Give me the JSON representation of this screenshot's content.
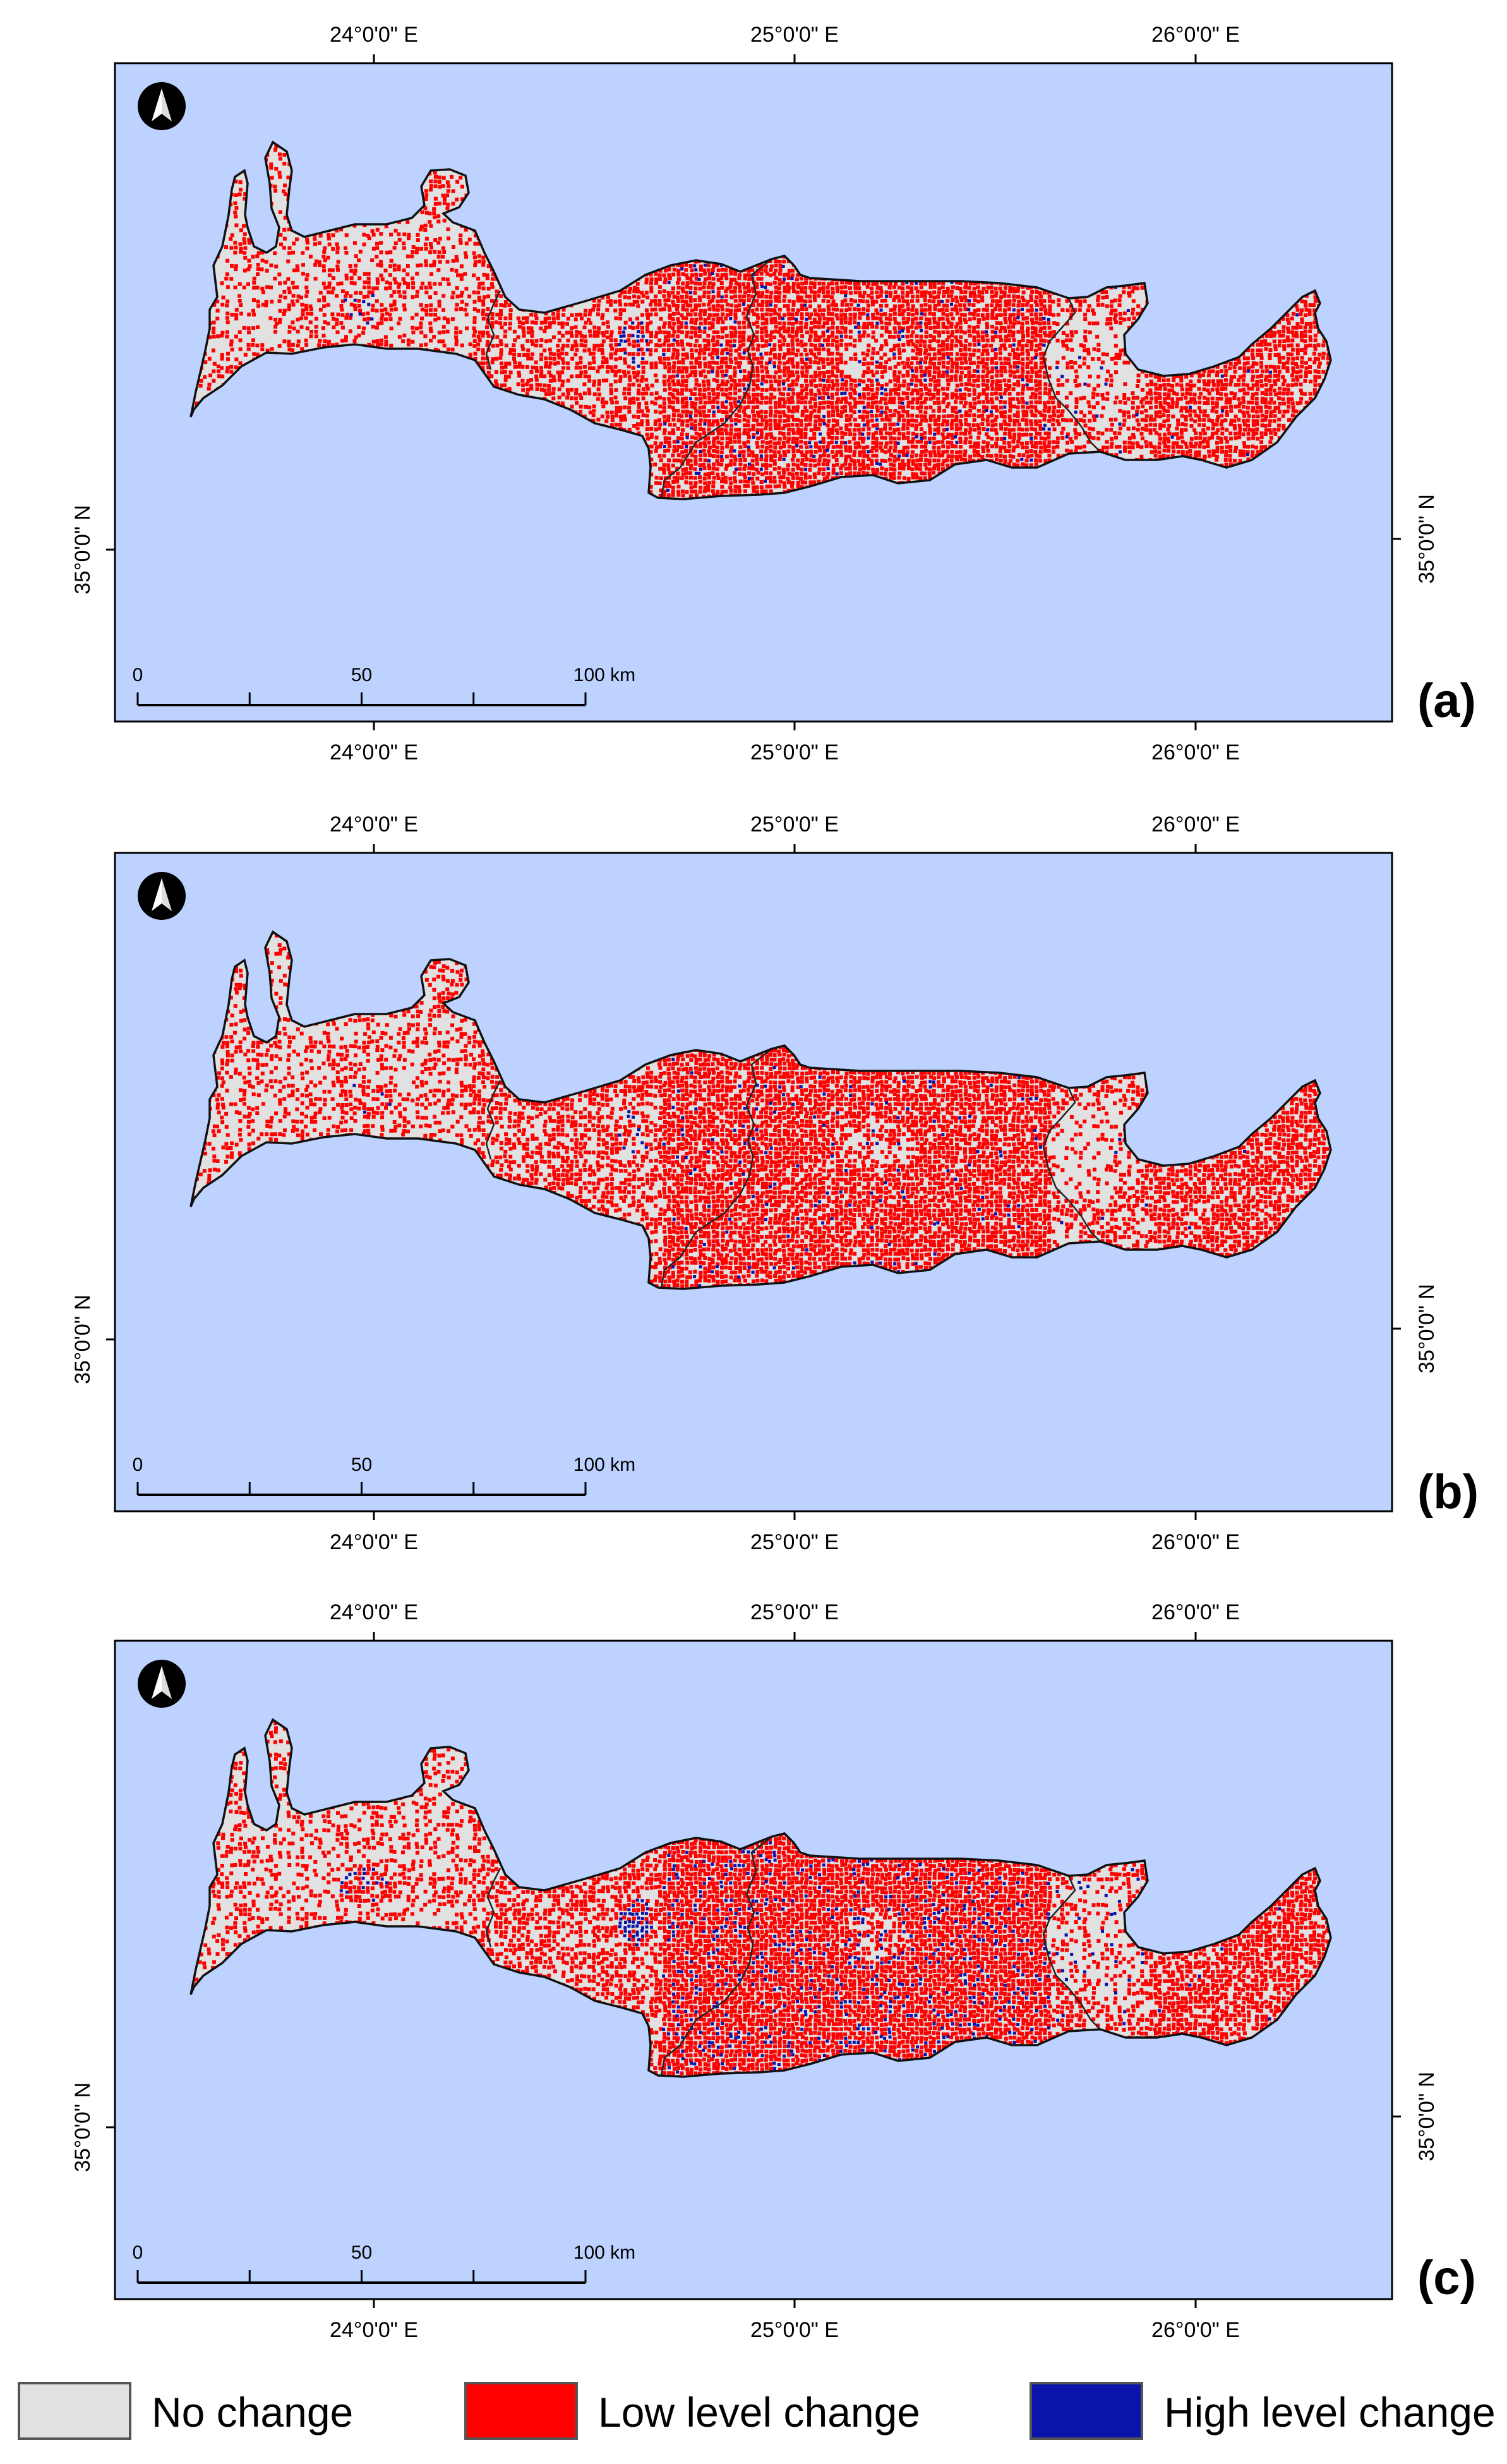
{
  "panels": [
    {
      "label": "(a)",
      "blue_intensity": 0.35
    },
    {
      "label": "(b)",
      "blue_intensity": 0.25
    },
    {
      "label": "(c)",
      "blue_intensity": 1.0
    }
  ],
  "longitude_labels": [
    "24°0'0\" E",
    "25°0'0\" E",
    "26°0'0\" E"
  ],
  "latitude_label": "35°0'0\" N",
  "scalebar": {
    "ticks": [
      "0",
      "50",
      "100 km"
    ]
  },
  "north_arrow_icon": "north-arrow-icon",
  "colors": {
    "sea": "#bed2ff",
    "no_change": "#e1e1e1",
    "low_change": "#ff0000",
    "high_change": "#0a14aa"
  },
  "legend": [
    {
      "label": "No change",
      "color": "#e1e1e1"
    },
    {
      "label": "Low level change",
      "color": "#ff0000"
    },
    {
      "label": "High level change",
      "color": "#0a14aa"
    }
  ]
}
